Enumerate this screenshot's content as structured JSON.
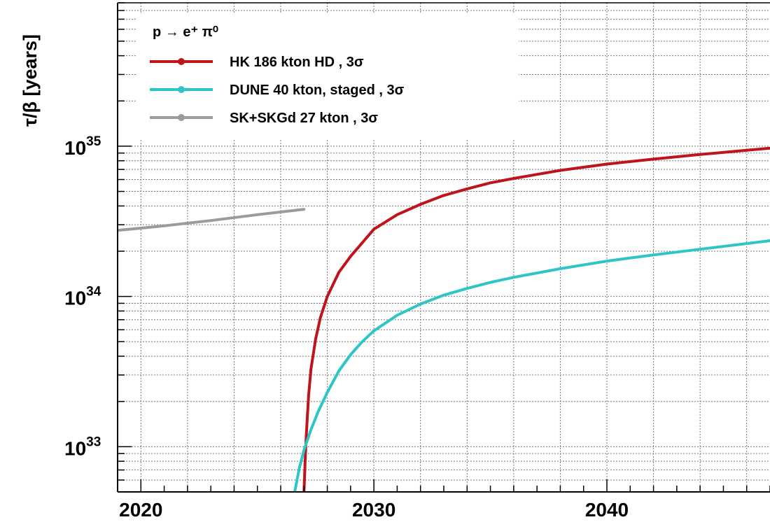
{
  "chart_data": {
    "type": "line",
    "ylabel": "τ/β [years]",
    "y_scale": "log",
    "xlim": [
      2019,
      2047
    ],
    "ylim": [
      5e+32,
      9e+35
    ],
    "grid": true,
    "x_ticks": [
      {
        "value": 2020,
        "label": "2020"
      },
      {
        "value": 2030,
        "label": "2030"
      },
      {
        "value": 2040,
        "label": "2040"
      }
    ],
    "y_ticks": [
      {
        "value": 1e+33,
        "base": "10",
        "exp": "33"
      },
      {
        "value": 1e+34,
        "base": "10",
        "exp": "34"
      },
      {
        "value": 1e+35,
        "base": "10",
        "exp": "35"
      }
    ],
    "legend": {
      "title": "p → e⁺ π⁰",
      "placement": "top-left"
    },
    "series": [
      {
        "name": "HK 186 kton HD , 3σ",
        "color": "#c0141c",
        "x": [
          2027.0,
          2027.05,
          2027.1,
          2027.2,
          2027.3,
          2027.5,
          2027.7,
          2028.0,
          2028.5,
          2029.0,
          2030.0,
          2031.0,
          2032.0,
          2033.0,
          2034.0,
          2035.0,
          2036.0,
          2038.0,
          2040.0,
          2042.0,
          2044.0,
          2046.0,
          2047.0
        ],
        "y": [
          5e+32,
          8e+32,
          1.2e+33,
          2.2e+33,
          3.3e+33,
          5.2e+33,
          7.2e+33,
          1e+34,
          1.45e+34,
          1.85e+34,
          2.8e+34,
          3.5e+34,
          4.1e+34,
          4.7e+34,
          5.2e+34,
          5.7e+34,
          6.1e+34,
          6.9e+34,
          7.6e+34,
          8.2e+34,
          8.8e+34,
          9.4e+34,
          9.7e+34
        ]
      },
      {
        "name": "DUNE 40 kton, staged , 3σ",
        "color": "#2fc4c6",
        "x": [
          2026.6,
          2026.8,
          2027.0,
          2027.3,
          2027.6,
          2028.0,
          2028.5,
          2029.0,
          2029.5,
          2030.0,
          2031.0,
          2032.0,
          2033.0,
          2034.0,
          2035.0,
          2036.0,
          2038.0,
          2040.0,
          2042.0,
          2044.0,
          2047.0
        ],
        "y": [
          5e+32,
          7.2e+32,
          9.5e+32,
          1.3e+33,
          1.7e+33,
          2.3e+33,
          3.2e+33,
          4.1e+33,
          5e+33,
          5.9e+33,
          7.5e+33,
          8.9e+33,
          1.02e+34,
          1.13e+34,
          1.24e+34,
          1.34e+34,
          1.53e+34,
          1.72e+34,
          1.89e+34,
          2.06e+34,
          2.35e+34
        ]
      },
      {
        "name": "SK+SKGd 27 kton , 3σ",
        "color": "#9b9b9b",
        "x": [
          2019.0,
          2021.0,
          2023.0,
          2025.0,
          2027.0
        ],
        "y": [
          2.75e+34,
          2.95e+34,
          3.2e+34,
          3.5e+34,
          3.8e+34
        ]
      }
    ]
  }
}
